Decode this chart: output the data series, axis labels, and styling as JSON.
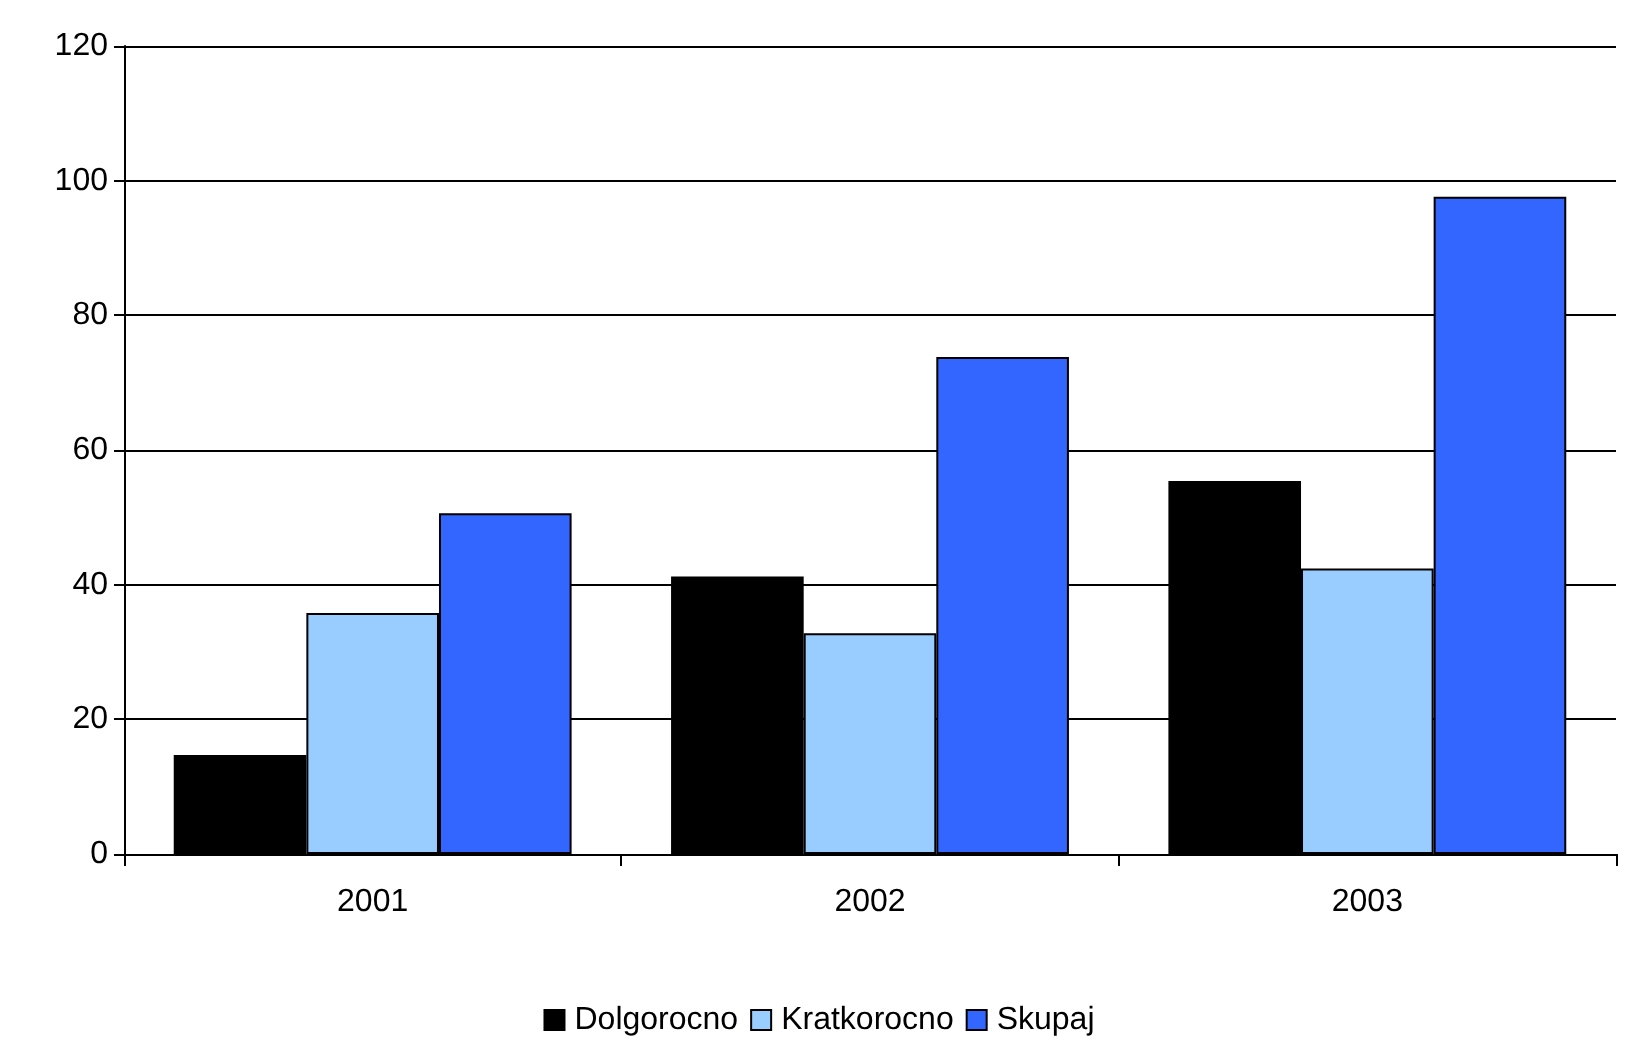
{
  "chart_data": {
    "type": "bar",
    "categories": [
      "2001",
      "2002",
      "2003"
    ],
    "series": [
      {
        "name": "Dolgorocno",
        "color": "#000000",
        "values": [
          14.7,
          41.2,
          55.4
        ]
      },
      {
        "name": "Kratkorocno",
        "color": "#99ccff",
        "values": [
          35.8,
          32.8,
          42.4
        ]
      },
      {
        "name": "Skupaj",
        "color": "#3366ff",
        "values": [
          50.6,
          73.8,
          97.6
        ]
      }
    ],
    "ylim": [
      0,
      120
    ],
    "yticks": [
      0,
      20,
      40,
      60,
      80,
      100,
      120
    ],
    "grid": "y",
    "legend": "bottom"
  }
}
